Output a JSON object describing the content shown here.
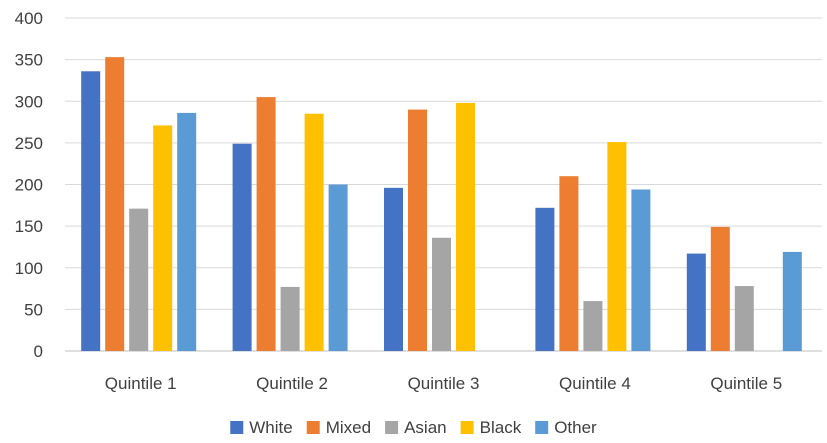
{
  "chart_data": {
    "type": "bar",
    "title": "",
    "xlabel": "",
    "ylabel": "",
    "categories": [
      "Quintile 1",
      "Quintile 2",
      "Quintile 3",
      "Quintile 4",
      "Quintile 5"
    ],
    "series": [
      {
        "name": "White",
        "color": "#4472c4",
        "values": [
          336,
          249,
          196,
          172,
          117
        ]
      },
      {
        "name": "Mixed",
        "color": "#ed7d31",
        "values": [
          353,
          305,
          290,
          210,
          149
        ]
      },
      {
        "name": "Asian",
        "color": "#a5a5a5",
        "values": [
          171,
          77,
          136,
          60,
          78
        ]
      },
      {
        "name": "Black",
        "color": "#ffc000",
        "values": [
          271,
          285,
          298,
          251,
          0
        ]
      },
      {
        "name": "Other",
        "color": "#5b9bd5",
        "values": [
          286,
          200,
          0,
          194,
          119
        ]
      }
    ],
    "ylim": [
      0,
      400
    ],
    "yticks": [
      "0",
      "50",
      "100",
      "150",
      "200",
      "250",
      "300",
      "350",
      "400"
    ],
    "grid": true,
    "legend_position": "bottom"
  }
}
